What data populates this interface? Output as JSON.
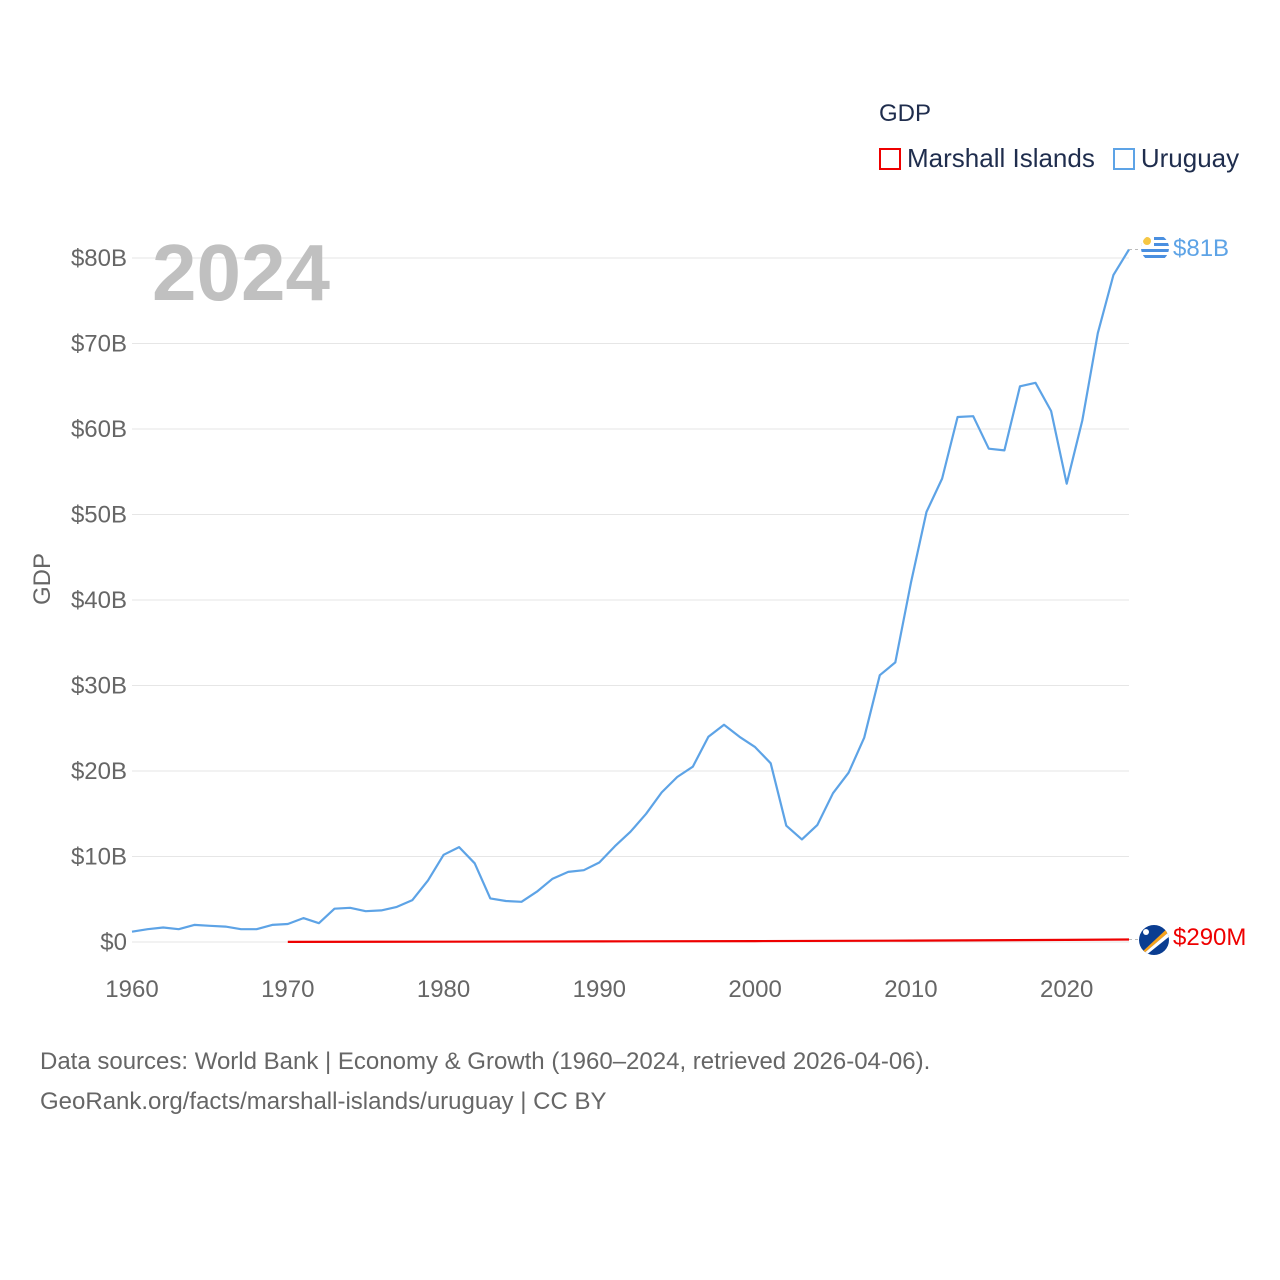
{
  "colors": {
    "marshall": "#ee0000",
    "uruguay": "#5da3e6",
    "grid": "#e6e6e6",
    "axis_text": "#666666",
    "year_text": "#c0c0c0"
  },
  "legend": {
    "title": "GDP",
    "items": [
      {
        "label": "Marshall Islands",
        "color": "#ee0000"
      },
      {
        "label": "Uruguay",
        "color": "#5da3e6"
      }
    ]
  },
  "year_label": "2024",
  "end_labels": {
    "uruguay": "$81B",
    "marshall": "$290M"
  },
  "icons": {
    "uruguay": "uruguay-flag-icon",
    "marshall": "marshall-islands-flag-icon"
  },
  "source": {
    "line1": "Data sources: World Bank | Economy & Growth (1960–2024, retrieved 2026-04-06).",
    "line2": "GeoRank.org/facts/marshall-islands/uruguay | CC BY"
  },
  "chart_data": {
    "type": "line",
    "title": "GDP",
    "xlabel": "",
    "ylabel": "GDP",
    "xlim": [
      1960,
      2024
    ],
    "ylim": [
      0,
      85
    ],
    "y_unit": "billion USD",
    "x_ticks": [
      1960,
      1970,
      1980,
      1990,
      2000,
      2010,
      2020
    ],
    "y_ticks": [
      0,
      10,
      20,
      30,
      40,
      50,
      60,
      70,
      80
    ],
    "y_tick_labels": [
      "$0",
      "$10B",
      "$20B",
      "$30B",
      "$40B",
      "$50B",
      "$60B",
      "$70B",
      "$80B"
    ],
    "grid": true,
    "legend_position": "top-right",
    "series": [
      {
        "name": "Uruguay",
        "color": "#5da3e6",
        "x": [
          1960,
          1961,
          1962,
          1963,
          1964,
          1965,
          1966,
          1967,
          1968,
          1969,
          1970,
          1971,
          1972,
          1973,
          1974,
          1975,
          1976,
          1977,
          1978,
          1979,
          1980,
          1981,
          1982,
          1983,
          1984,
          1985,
          1986,
          1987,
          1988,
          1989,
          1990,
          1991,
          1992,
          1993,
          1994,
          1995,
          1996,
          1997,
          1998,
          1999,
          2000,
          2001,
          2002,
          2003,
          2004,
          2005,
          2006,
          2007,
          2008,
          2009,
          2010,
          2011,
          2012,
          2013,
          2014,
          2015,
          2016,
          2017,
          2018,
          2019,
          2020,
          2021,
          2022,
          2023,
          2024
        ],
        "values": [
          1.2,
          1.5,
          1.7,
          1.5,
          2.0,
          1.9,
          1.8,
          1.5,
          1.5,
          2.0,
          2.1,
          2.8,
          2.2,
          3.9,
          4.0,
          3.6,
          3.7,
          4.1,
          4.9,
          7.2,
          10.2,
          11.1,
          9.2,
          5.1,
          4.8,
          4.7,
          5.9,
          7.4,
          8.2,
          8.4,
          9.3,
          11.2,
          12.9,
          15.0,
          17.5,
          19.3,
          20.5,
          24.0,
          25.4,
          24.0,
          22.8,
          20.9,
          13.6,
          12.0,
          13.7,
          17.4,
          19.8,
          23.9,
          31.2,
          32.7,
          42.0,
          50.3,
          54.2,
          61.4,
          61.5,
          57.7,
          57.5,
          65.0,
          65.4,
          62.1,
          53.6,
          61.0,
          71.2,
          78.0,
          81.0
        ]
      },
      {
        "name": "Marshall Islands",
        "color": "#ee0000",
        "x": [
          1970,
          1980,
          1990,
          2000,
          2010,
          2020,
          2024
        ],
        "values": [
          0.01,
          0.03,
          0.07,
          0.11,
          0.16,
          0.24,
          0.29
        ]
      }
    ]
  }
}
